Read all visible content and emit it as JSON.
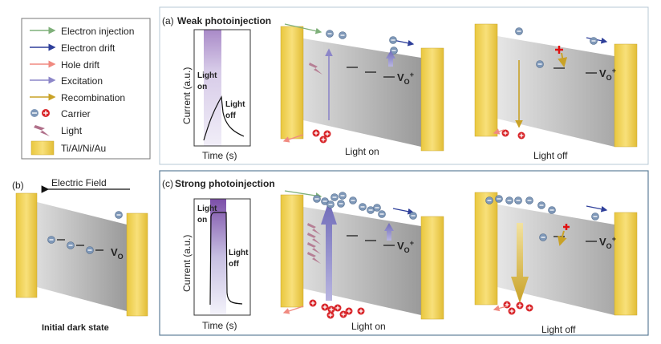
{
  "legend": {
    "items": [
      {
        "label": "Electron injection",
        "color": "#7fb07a"
      },
      {
        "label": "Electron drift",
        "color": "#2e3f9a"
      },
      {
        "label": "Hole drift",
        "color": "#f08a80"
      },
      {
        "label": "Excitation",
        "color": "#8c86c8"
      },
      {
        "label": "Recombination",
        "color": "#c9a227"
      }
    ],
    "carrier_label": "Carrier",
    "light_label": "Light",
    "electrode_label": "Ti/Al/Ni/Au"
  },
  "panel_a": {
    "tag": "(a)",
    "title": "Weak photoinjection",
    "chart": {
      "ylabel": "Current (a.u.)",
      "xlabel": "Time (s)",
      "on_label_1": "Light",
      "on_label_2": "on",
      "off_label_1": "Light",
      "off_label_2": "off"
    },
    "left_caption": "Light on",
    "right_caption": "Light off",
    "defect_label": "V",
    "defect_sub": "O",
    "defect_sup": "+"
  },
  "panel_b": {
    "tag": "(b)",
    "field_label": "Electric Field",
    "caption": "Initial dark state",
    "defect_label": "V",
    "defect_sub": "O"
  },
  "panel_c": {
    "tag": "(c)",
    "title": "Strong photoinjection",
    "chart": {
      "ylabel": "Current (a.u.)",
      "xlabel": "Time (s)",
      "on_label_1": "Light",
      "on_label_2": "on",
      "off_label_1": "Light",
      "off_label_2": "off"
    },
    "left_caption": "Light on",
    "right_caption": "Light off",
    "defect_label": "V",
    "defect_sub": "O",
    "defect_sup": "+"
  },
  "colors": {
    "electrode": "#f0d45a",
    "band": "#b8b8b8",
    "electron": "#7f98b8",
    "hole": "#d8262a",
    "light": "#b0708a",
    "panel_border": "#9fb4c4"
  }
}
